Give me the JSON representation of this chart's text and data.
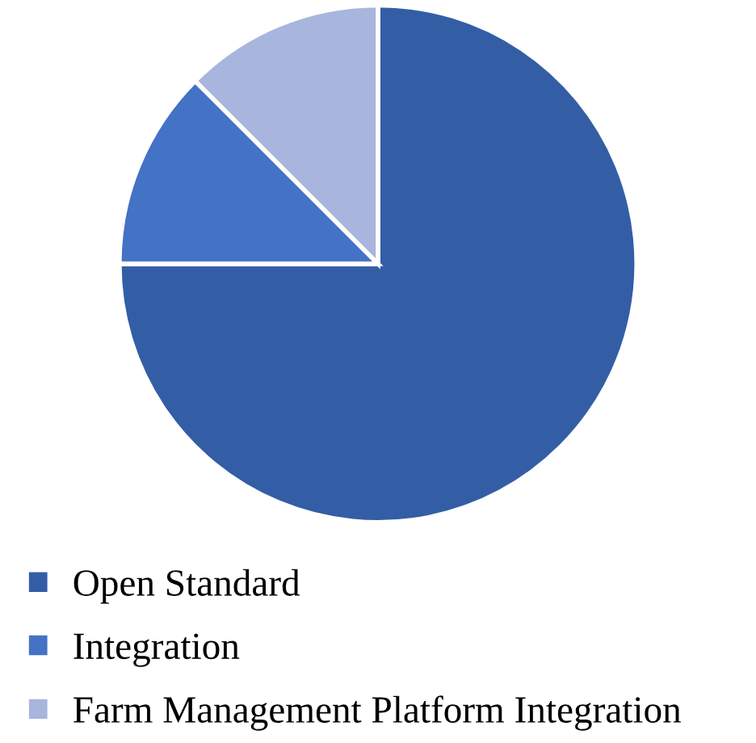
{
  "chart_data": {
    "type": "pie",
    "categories": [
      "Open Standard",
      "Integration",
      "Farm Management Platform Integration"
    ],
    "values": [
      75,
      12.5,
      12.5
    ],
    "colors": [
      "#335ea6",
      "#4472c4",
      "#a8b5dc"
    ],
    "legend": "bottom"
  }
}
